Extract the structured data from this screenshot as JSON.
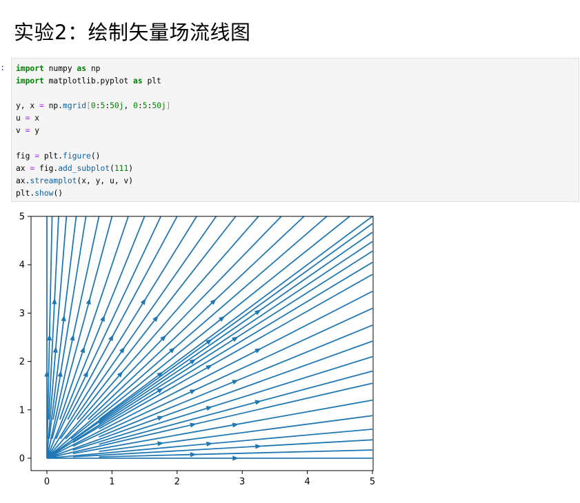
{
  "heading": "实验2：绘制矢量场流线图",
  "cell": {
    "prompt": ":",
    "lines": [
      [
        {
          "t": "import",
          "c": "kw"
        },
        {
          "t": " numpy "
        },
        {
          "t": "as",
          "c": "kw"
        },
        {
          "t": " np"
        }
      ],
      [
        {
          "t": "import",
          "c": "kw"
        },
        {
          "t": " matplotlib.pyplot "
        },
        {
          "t": "as",
          "c": "kw"
        },
        {
          "t": " plt"
        }
      ],
      [],
      [
        {
          "t": "y, x "
        },
        {
          "t": "=",
          "c": "op"
        },
        {
          "t": " np."
        },
        {
          "t": "mgrid",
          "c": "attr"
        },
        {
          "t": "[",
          "c": "br"
        },
        {
          "t": "0",
          "c": "num"
        },
        {
          "t": ":"
        },
        {
          "t": "5",
          "c": "num"
        },
        {
          "t": ":"
        },
        {
          "t": "50j",
          "c": "num"
        },
        {
          "t": ", "
        },
        {
          "t": "0",
          "c": "num"
        },
        {
          "t": ":"
        },
        {
          "t": "5",
          "c": "num"
        },
        {
          "t": ":"
        },
        {
          "t": "50j",
          "c": "num"
        },
        {
          "t": "]",
          "c": "br"
        }
      ],
      [
        {
          "t": "u "
        },
        {
          "t": "=",
          "c": "op"
        },
        {
          "t": " x"
        }
      ],
      [
        {
          "t": "v "
        },
        {
          "t": "=",
          "c": "op"
        },
        {
          "t": " y"
        }
      ],
      [],
      [
        {
          "t": "fig "
        },
        {
          "t": "=",
          "c": "op"
        },
        {
          "t": " plt."
        },
        {
          "t": "figure",
          "c": "attr"
        },
        {
          "t": "()"
        }
      ],
      [
        {
          "t": "ax "
        },
        {
          "t": "=",
          "c": "op"
        },
        {
          "t": " fig."
        },
        {
          "t": "add_subplot",
          "c": "attr"
        },
        {
          "t": "("
        },
        {
          "t": "111",
          "c": "num"
        },
        {
          "t": ")"
        }
      ],
      [
        {
          "t": "ax."
        },
        {
          "t": "streamplot",
          "c": "attr"
        },
        {
          "t": "(x, y, u, v)"
        }
      ],
      [
        {
          "t": "plt."
        },
        {
          "t": "show",
          "c": "attr"
        },
        {
          "t": "()"
        }
      ]
    ]
  },
  "chart_data": {
    "type": "streamplot",
    "xlim": [
      0,
      5
    ],
    "ylim": [
      0,
      5
    ],
    "xticks": [
      "0",
      "1",
      "2",
      "3",
      "4",
      "5"
    ],
    "yticks": [
      "0",
      "1",
      "2",
      "3",
      "4",
      "5"
    ],
    "line_color": "#1f77b4",
    "field": {
      "u": "x",
      "v": "y"
    },
    "grid": false,
    "streamline_endpoints": [
      [
        0.0,
        5.0
      ],
      [
        0.08,
        5.0
      ],
      [
        0.18,
        5.0
      ],
      [
        0.3,
        5.0
      ],
      [
        0.45,
        5.0
      ],
      [
        0.6,
        5.0
      ],
      [
        0.8,
        5.0
      ],
      [
        1.0,
        5.0
      ],
      [
        1.25,
        5.0
      ],
      [
        1.5,
        5.0
      ],
      [
        1.75,
        5.0
      ],
      [
        2.0,
        5.0
      ],
      [
        2.3,
        5.0
      ],
      [
        2.6,
        5.0
      ],
      [
        2.9,
        5.0
      ],
      [
        3.25,
        5.0
      ],
      [
        3.6,
        5.0
      ],
      [
        3.95,
        5.0
      ],
      [
        4.3,
        5.0
      ],
      [
        4.65,
        5.0
      ],
      [
        5.0,
        5.0
      ],
      [
        5.0,
        4.85
      ],
      [
        5.0,
        4.67
      ],
      [
        5.0,
        4.48
      ],
      [
        5.0,
        4.28
      ],
      [
        5.0,
        4.05
      ],
      [
        5.0,
        3.8
      ],
      [
        5.0,
        3.45
      ],
      [
        5.0,
        3.1
      ],
      [
        5.0,
        2.75
      ],
      [
        5.0,
        2.42
      ],
      [
        5.0,
        2.1
      ],
      [
        5.0,
        1.8
      ],
      [
        5.0,
        1.55
      ],
      [
        5.0,
        1.2
      ],
      [
        5.0,
        0.88
      ],
      [
        5.0,
        0.6
      ],
      [
        5.0,
        0.38
      ],
      [
        5.0,
        0.17
      ],
      [
        5.0,
        0.0
      ]
    ]
  }
}
